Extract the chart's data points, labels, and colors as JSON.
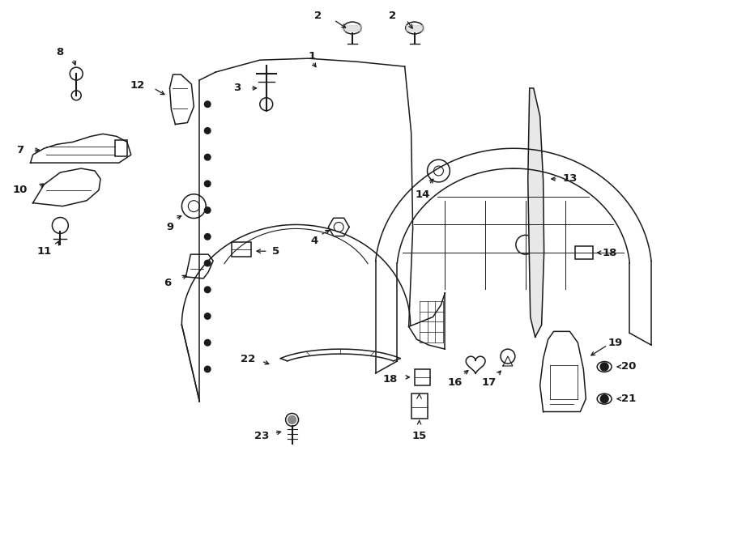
{
  "bg_color": "#ffffff",
  "line_color": "#1a1a1a",
  "fig_width": 9.0,
  "fig_height": 6.62,
  "dpi": 100
}
